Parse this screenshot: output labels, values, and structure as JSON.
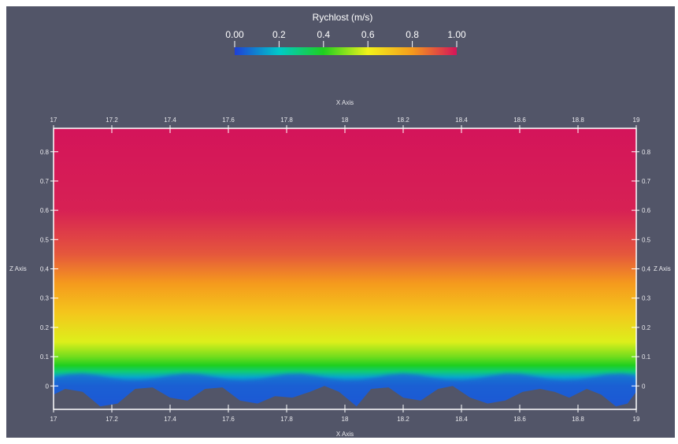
{
  "chart_data": {
    "type": "heatmap",
    "colorbar": {
      "title": "Rychlost (m/s)",
      "range": [
        0,
        1
      ],
      "tick_values": [
        0,
        0.2,
        0.4,
        0.6,
        0.8,
        1.0
      ],
      "tick_labels": [
        "0.00",
        "0.2",
        "0.4",
        "0.6",
        "0.8",
        "1.00"
      ],
      "colors": [
        "#1f3fd6",
        "#00c9c9",
        "#1fcf1f",
        "#f2f21a",
        "#f59a1d",
        "#d4145a"
      ]
    },
    "x_axis": {
      "label": "X Axis",
      "range": [
        17,
        19
      ],
      "tick_values": [
        17,
        17.2,
        17.4,
        17.6,
        17.8,
        18,
        18.2,
        18.4,
        18.6,
        18.8,
        19
      ],
      "tick_labels": [
        "17",
        "17.2",
        "17.4",
        "17.6",
        "17.8",
        "18",
        "18.2",
        "18.4",
        "18.6",
        "18.8",
        "19"
      ]
    },
    "z_axis": {
      "label": "Z Axis",
      "range": [
        -0.08,
        0.88
      ],
      "tick_values": [
        0,
        0.1,
        0.2,
        0.3,
        0.4,
        0.5,
        0.6,
        0.7,
        0.8
      ],
      "tick_labels": [
        "0",
        "0.1",
        "0.2",
        "0.3",
        "0.4",
        "0.5",
        "0.6",
        "0.7",
        "0.8"
      ]
    },
    "field_profile": [
      {
        "z": 0.88,
        "velocity": 1.0
      },
      {
        "z": 0.6,
        "velocity": 0.98
      },
      {
        "z": 0.45,
        "velocity": 0.9
      },
      {
        "z": 0.35,
        "velocity": 0.8
      },
      {
        "z": 0.25,
        "velocity": 0.7
      },
      {
        "z": 0.15,
        "velocity": 0.58
      },
      {
        "z": 0.1,
        "velocity": 0.48
      },
      {
        "z": 0.07,
        "velocity": 0.4
      },
      {
        "z": 0.05,
        "velocity": 0.3
      },
      {
        "z": 0.03,
        "velocity": 0.15
      },
      {
        "z": 0.0,
        "velocity": 0.05
      },
      {
        "z": -0.08,
        "velocity": 0.0
      }
    ],
    "bed_profile": [
      {
        "x": 17.0,
        "z": -0.03
      },
      {
        "x": 17.04,
        "z": -0.01
      },
      {
        "x": 17.1,
        "z": -0.02
      },
      {
        "x": 17.16,
        "z": -0.07
      },
      {
        "x": 17.22,
        "z": -0.06
      },
      {
        "x": 17.28,
        "z": -0.01
      },
      {
        "x": 17.34,
        "z": -0.005
      },
      {
        "x": 17.4,
        "z": -0.04
      },
      {
        "x": 17.46,
        "z": -0.05
      },
      {
        "x": 17.52,
        "z": -0.01
      },
      {
        "x": 17.58,
        "z": -0.005
      },
      {
        "x": 17.64,
        "z": -0.05
      },
      {
        "x": 17.7,
        "z": -0.06
      },
      {
        "x": 17.76,
        "z": -0.035
      },
      {
        "x": 17.82,
        "z": -0.04
      },
      {
        "x": 17.88,
        "z": -0.02
      },
      {
        "x": 17.93,
        "z": 0.0
      },
      {
        "x": 17.98,
        "z": -0.02
      },
      {
        "x": 18.04,
        "z": -0.07
      },
      {
        "x": 18.09,
        "z": -0.01
      },
      {
        "x": 18.15,
        "z": -0.005
      },
      {
        "x": 18.2,
        "z": -0.04
      },
      {
        "x": 18.26,
        "z": -0.05
      },
      {
        "x": 18.32,
        "z": -0.01
      },
      {
        "x": 18.37,
        "z": 0.0
      },
      {
        "x": 18.43,
        "z": -0.04
      },
      {
        "x": 18.49,
        "z": -0.06
      },
      {
        "x": 18.55,
        "z": -0.05
      },
      {
        "x": 18.61,
        "z": -0.02
      },
      {
        "x": 18.67,
        "z": -0.01
      },
      {
        "x": 18.72,
        "z": -0.02
      },
      {
        "x": 18.77,
        "z": -0.04
      },
      {
        "x": 18.83,
        "z": -0.01
      },
      {
        "x": 18.88,
        "z": -0.03
      },
      {
        "x": 18.93,
        "z": -0.07
      },
      {
        "x": 18.97,
        "z": -0.06
      },
      {
        "x": 19.0,
        "z": -0.02
      }
    ]
  }
}
